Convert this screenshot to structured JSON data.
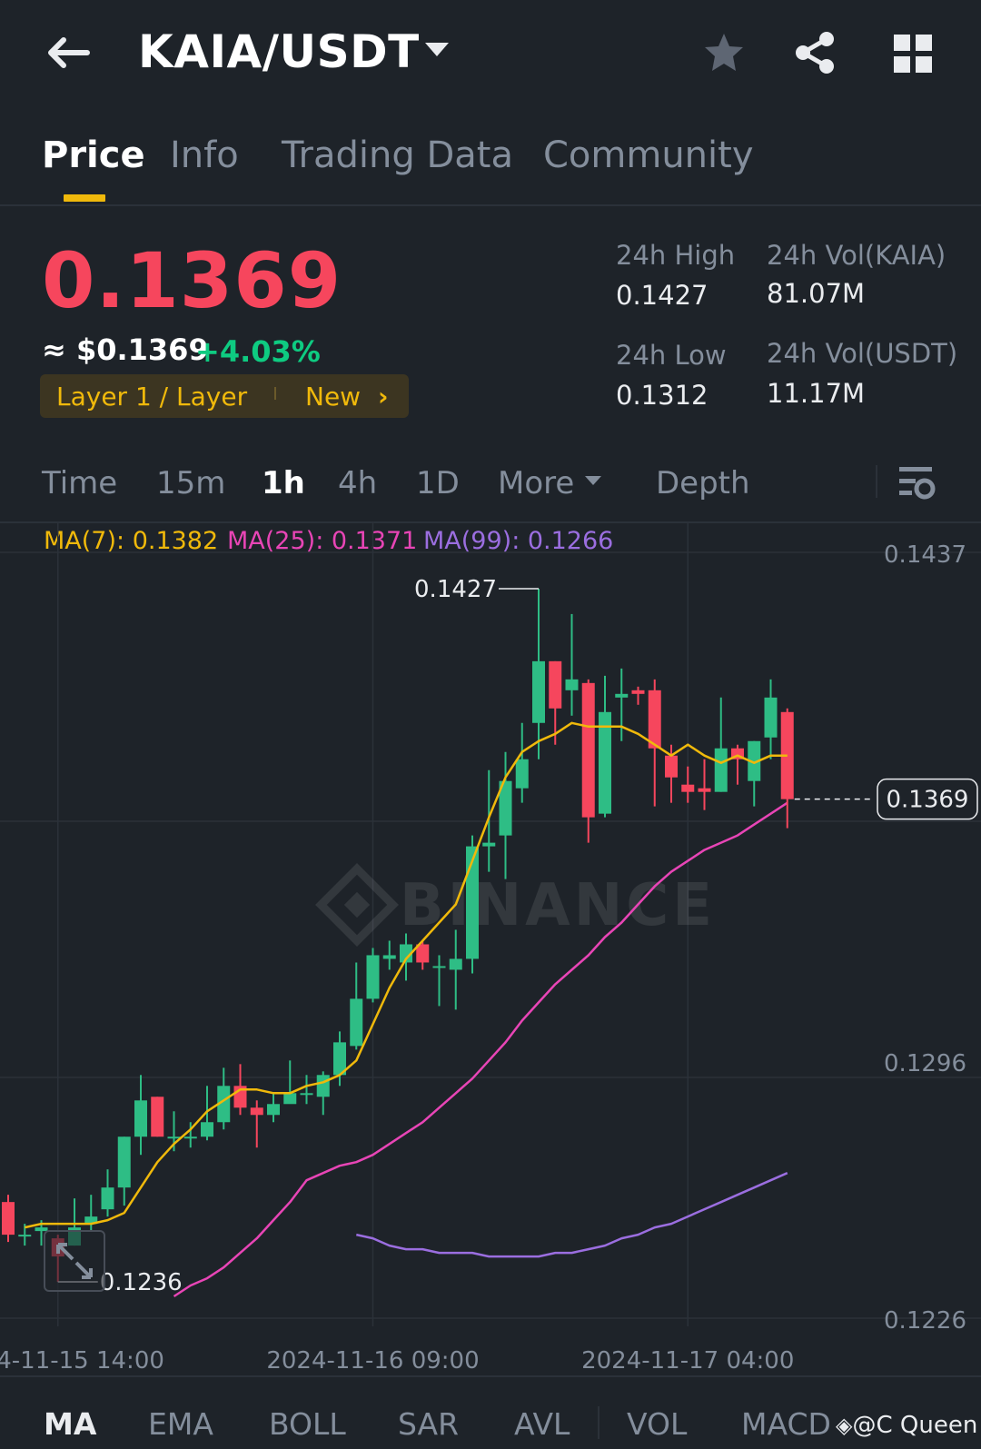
{
  "header": {
    "pair": "KAIA/USDT",
    "icons": [
      "back-arrow-icon",
      "caret-down-icon",
      "star-icon",
      "share-icon",
      "grid-icon"
    ]
  },
  "tabs": [
    {
      "label": "Price",
      "active": true
    },
    {
      "label": "Info",
      "active": false
    },
    {
      "label": "Trading Data",
      "active": false
    },
    {
      "label": "Community",
      "active": false
    }
  ],
  "ticker": {
    "last_price": "0.1369",
    "fiat_price": "≈ $0.1369",
    "change_pct": "+4.03%",
    "tag_category": "Layer 1 / Layer",
    "tag_new": "New",
    "tag_chevron": "›",
    "high_label": "24h High",
    "high_value": "0.1427",
    "low_label": "24h Low",
    "low_value": "0.1312",
    "vol_base_label": "24h Vol(KAIA)",
    "vol_base_value": "81.07M",
    "vol_quote_label": "24h Vol(USDT)",
    "vol_quote_value": "11.17M"
  },
  "intervals": {
    "time": "Time",
    "m15": "15m",
    "h1": "1h",
    "h4": "4h",
    "d1": "1D",
    "more": "More",
    "depth": "Depth",
    "selected": "1h"
  },
  "indicators_legend": {
    "ma7": "MA(7): 0.1382",
    "ma25": "MA(25): 0.1371",
    "ma99": "MA(99): 0.1266"
  },
  "chart_data": {
    "type": "candlestick",
    "interval": "1h",
    "y_ticks": [
      "0.1437",
      "0.1296",
      "0.1226"
    ],
    "ylim": [
      0.1226,
      0.1437
    ],
    "x_ticks": [
      "2024-11-15 14:00",
      "2024-11-16 09:00",
      "2024-11-17 04:00"
    ],
    "x_tick_index": [
      3,
      22,
      41
    ],
    "high_marker": "0.1427",
    "low_marker": "0.1236",
    "current_price_label": "0.1369",
    "watermark": "BINANCE",
    "candles": [
      [
        0.1258,
        0.1249,
        0.126,
        0.1247
      ],
      [
        0.1249,
        0.1249,
        0.1252,
        0.1246
      ],
      [
        0.125,
        0.1251,
        0.1253,
        0.1246
      ],
      [
        0.1248,
        0.1243,
        0.1249,
        0.1236
      ],
      [
        0.1246,
        0.1251,
        0.1259,
        0.1246
      ],
      [
        0.1252,
        0.1254,
        0.126,
        0.125
      ],
      [
        0.1256,
        0.1262,
        0.1267,
        0.1254
      ],
      [
        0.1262,
        0.1276,
        0.1276,
        0.1257
      ],
      [
        0.1276,
        0.1286,
        0.1293,
        0.1271
      ],
      [
        0.1287,
        0.1276,
        0.1287,
        0.1276
      ],
      [
        0.1276,
        0.1276,
        0.1283,
        0.1272
      ],
      [
        0.1276,
        0.1276,
        0.128,
        0.1273
      ],
      [
        0.1276,
        0.128,
        0.129,
        0.1275
      ],
      [
        0.128,
        0.129,
        0.1295,
        0.1278
      ],
      [
        0.129,
        0.1284,
        0.1296,
        0.1282
      ],
      [
        0.1284,
        0.1282,
        0.1286,
        0.1273
      ],
      [
        0.1282,
        0.1285,
        0.1288,
        0.128
      ],
      [
        0.1285,
        0.1288,
        0.1297,
        0.1286
      ],
      [
        0.1288,
        0.1288,
        0.1293,
        0.1285
      ],
      [
        0.1287,
        0.1293,
        0.1294,
        0.1282
      ],
      [
        0.1293,
        0.1302,
        0.1305,
        0.129
      ],
      [
        0.1301,
        0.1314,
        0.1324,
        0.13
      ],
      [
        0.1314,
        0.1326,
        0.1328,
        0.1313
      ],
      [
        0.1325,
        0.1326,
        0.133,
        0.1322
      ],
      [
        0.1324,
        0.1329,
        0.1332,
        0.1319
      ],
      [
        0.1329,
        0.1324,
        0.133,
        0.1322
      ],
      [
        0.1323,
        0.1323,
        0.1326,
        0.1312
      ],
      [
        0.1322,
        0.1325,
        0.1333,
        0.1311
      ],
      [
        0.1325,
        0.1356,
        0.1359,
        0.1321
      ],
      [
        0.1356,
        0.1357,
        0.1377,
        0.1349
      ],
      [
        0.1359,
        0.1374,
        0.1382,
        0.1347
      ],
      [
        0.1372,
        0.138,
        0.139,
        0.1368
      ],
      [
        0.139,
        0.1407,
        0.1427,
        0.138
      ],
      [
        0.1407,
        0.1394,
        0.1407,
        0.1384
      ],
      [
        0.1399,
        0.1402,
        0.142,
        0.1392
      ],
      [
        0.1401,
        0.1364,
        0.1402,
        0.1357
      ],
      [
        0.1365,
        0.1393,
        0.1403,
        0.1364
      ],
      [
        0.1397,
        0.1398,
        0.1405,
        0.1385
      ],
      [
        0.1399,
        0.1398,
        0.14,
        0.1395
      ],
      [
        0.1399,
        0.1383,
        0.1402,
        0.1367
      ],
      [
        0.1381,
        0.1375,
        0.1384,
        0.1368
      ],
      [
        0.1373,
        0.1371,
        0.1378,
        0.1368
      ],
      [
        0.1372,
        0.1371,
        0.138,
        0.1366
      ],
      [
        0.1371,
        0.1383,
        0.1397,
        0.1371
      ],
      [
        0.1383,
        0.138,
        0.1384,
        0.1373
      ],
      [
        0.1374,
        0.1385,
        0.1385,
        0.1367
      ],
      [
        0.1386,
        0.1397,
        0.1402,
        0.138
      ],
      [
        0.1393,
        0.1369,
        0.1394,
        0.1361
      ]
    ],
    "ma7": [
      0.1251,
      0.1252,
      0.1252,
      0.1252,
      0.1252,
      0.1253,
      0.1255,
      0.1262,
      0.1269,
      0.1274,
      0.1278,
      0.1283,
      0.1286,
      0.1289,
      0.1289,
      0.1288,
      0.1288,
      0.129,
      0.1291,
      0.1293,
      0.1297,
      0.1307,
      0.1317,
      0.1325,
      0.133,
      0.1335,
      0.134,
      0.1352,
      0.1364,
      0.1375,
      0.1382,
      0.1385,
      0.1387,
      0.139,
      0.1389,
      0.1389,
      0.1389,
      0.1387,
      0.1384,
      0.1381,
      0.1384,
      0.1381,
      0.1379,
      0.1381,
      0.1379,
      0.1381,
      0.1381
    ],
    "ma25": [
      0.1232,
      0.1235,
      0.1237,
      0.124,
      0.1244,
      0.1248,
      0.1253,
      0.1258,
      0.1264,
      0.1266,
      0.1268,
      0.1269,
      0.1271,
      0.1274,
      0.1277,
      0.128,
      0.1284,
      0.1288,
      0.1292,
      0.1297,
      0.1302,
      0.1308,
      0.1313,
      0.1318,
      0.1322,
      0.1326,
      0.1331,
      0.1335,
      0.134,
      0.1345,
      0.1349,
      0.1352,
      0.1355,
      0.1357,
      0.1359,
      0.1362,
      0.1365,
      0.1368
    ],
    "ma99": [
      0.1249,
      0.1248,
      0.1246,
      0.1245,
      0.1245,
      0.1244,
      0.1244,
      0.1244,
      0.1243,
      0.1243,
      0.1243,
      0.1243,
      0.1244,
      0.1244,
      0.1245,
      0.1246,
      0.1248,
      0.1249,
      0.1251,
      0.1252,
      0.1254,
      0.1256,
      0.1258,
      0.126,
      0.1262,
      0.1264,
      0.1266
    ]
  },
  "bottom_indicators": [
    "MA",
    "EMA",
    "BOLL",
    "SAR",
    "AVL",
    "VOL",
    "MACD"
  ],
  "bottom_active": "MA",
  "credit": "@C Queen",
  "colors": {
    "background": "#1e2329",
    "up": "#2ebd85",
    "down": "#f6465d",
    "accent": "#f0b90b",
    "ma7": "#f0b90b",
    "ma25": "#e845b6",
    "ma99": "#9b6ee0",
    "muted": "#848e9c"
  }
}
